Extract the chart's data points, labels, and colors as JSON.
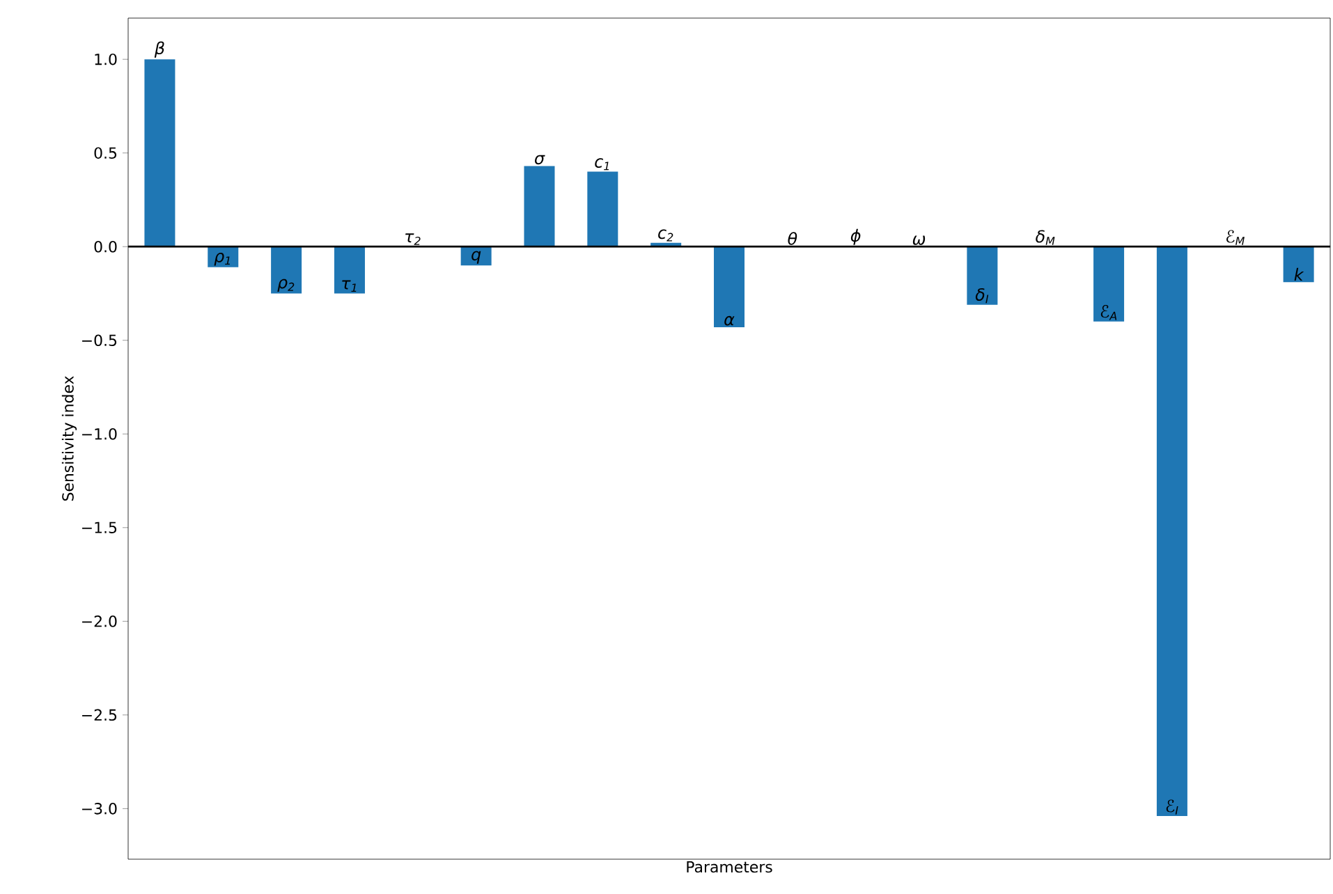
{
  "chart_data": {
    "type": "bar",
    "xlabel": "Parameters",
    "ylabel": "Sensitivity index",
    "categories": [
      "β",
      "ρ$_{1}$",
      "ρ$_{2}$",
      "τ$_{1}$",
      "τ$_{2}$",
      "q",
      "σ",
      "c$_{1}$",
      "c$_{2}$",
      "α",
      "θ",
      "ϕ",
      "ω",
      "δ$_{I}$",
      "δ$_{M}$",
      "ℰ$_{A}$",
      "ℰ$_{I}$",
      "ℰ$_{M}$",
      "k"
    ],
    "values": [
      1.0,
      -0.11,
      -0.25,
      -0.25,
      0.0,
      -0.1,
      0.43,
      0.4,
      0.02,
      -0.43,
      0.0,
      0.0,
      0.0,
      -0.31,
      0.0,
      -0.4,
      -3.04,
      0.0,
      -0.19
    ],
    "color": "#1f77b4",
    "ylim": [
      -3.27,
      1.22
    ],
    "yticks": [
      {
        "value": -3.0,
        "label": "−3.0"
      },
      {
        "value": -2.5,
        "label": "−2.5"
      },
      {
        "value": -2.0,
        "label": "−2.0"
      },
      {
        "value": -1.5,
        "label": "−1.5"
      },
      {
        "value": -1.0,
        "label": "−1.0"
      },
      {
        "value": -0.5,
        "label": "−0.5"
      },
      {
        "value": 0.0,
        "label": "0.0"
      },
      {
        "value": 0.5,
        "label": "0.5"
      },
      {
        "value": 1.0,
        "label": "1.0"
      }
    ]
  }
}
